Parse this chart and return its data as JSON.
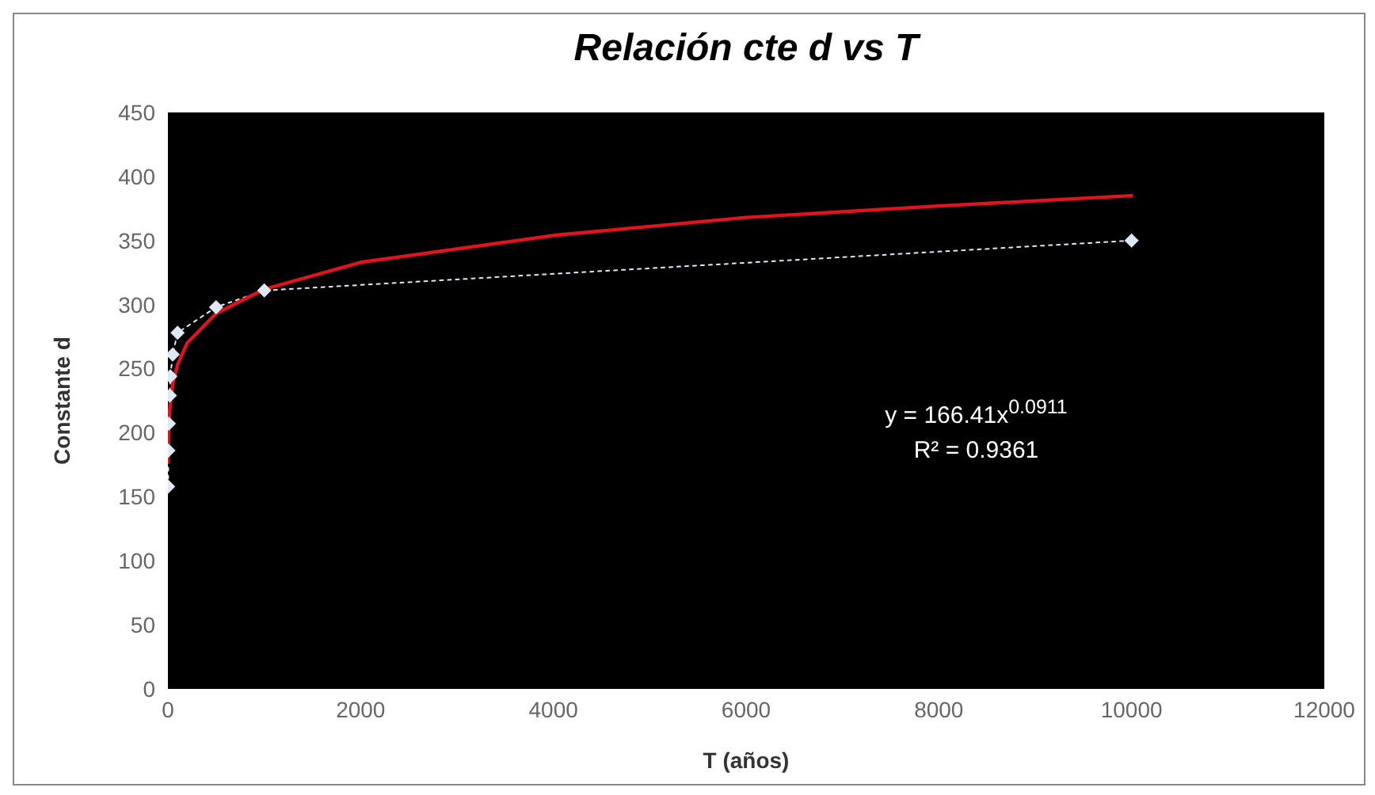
{
  "chart_data": {
    "type": "line",
    "title": "Relación cte d vs T",
    "xlabel": "T (años)",
    "ylabel": "Constante d",
    "xlim": [
      0,
      12000
    ],
    "xticks": [
      0,
      2000,
      4000,
      6000,
      8000,
      10000,
      12000
    ],
    "ylim": [
      0,
      450
    ],
    "yticks": [
      0,
      50,
      100,
      150,
      200,
      250,
      300,
      350,
      400,
      450
    ],
    "grid": false,
    "annotations": [
      "y = 166.41x$^{0.0911}$",
      "R² = 0.9361"
    ],
    "series": [
      {
        "color": "#dfe8f7",
        "marker": "diamond",
        "line_style": "dotted",
        "x": [
          2,
          5,
          10,
          20,
          25,
          50,
          100,
          500,
          1000,
          10000
        ],
        "values": [
          158,
          186,
          207,
          229,
          244,
          261,
          278,
          298,
          311,
          350
        ]
      },
      {
        "color": "#e0141e",
        "marker": "none",
        "line_style": "solid",
        "x": [
          2,
          5,
          10,
          20,
          50,
          100,
          200,
          500,
          1000,
          2000,
          4000,
          6000,
          8000,
          10000
        ],
        "values": [
          177,
          193,
          205,
          219,
          238,
          253,
          270,
          293,
          312,
          333,
          354,
          368,
          377,
          385
        ]
      }
    ]
  }
}
